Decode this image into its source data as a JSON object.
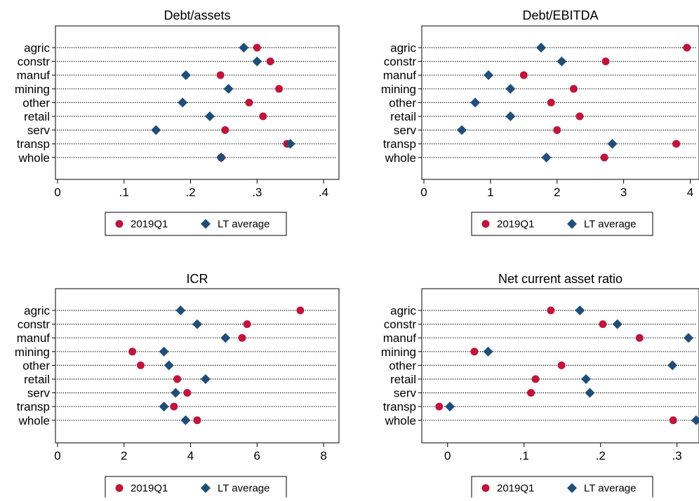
{
  "legend_labels": [
    "2019Q1",
    "LT average"
  ],
  "colors": {
    "2019Q1": "#c0143c",
    "LT average": "#1f4e79",
    "axis": "#000000"
  },
  "chart_data": [
    {
      "type": "dot",
      "title": "Debt/assets",
      "categories": [
        "agric",
        "constr",
        "manuf",
        "mining",
        "other",
        "retail",
        "serv",
        "transp",
        "whole"
      ],
      "series": [
        {
          "name": "2019Q1",
          "values": [
            0.3,
            0.32,
            0.245,
            0.333,
            0.288,
            0.309,
            0.252,
            0.345,
            0.246
          ]
        },
        {
          "name": "LT average",
          "values": [
            0.28,
            0.3,
            0.193,
            0.257,
            0.188,
            0.229,
            0.148,
            0.35,
            0.246
          ]
        }
      ],
      "xticks": [
        0,
        0.1,
        0.2,
        0.3,
        0.4
      ],
      "xtick_labels": [
        "0",
        ".1",
        ".2",
        ".3",
        ".4"
      ],
      "xlim": [
        0,
        0.42
      ],
      "legend_position": "bottom"
    },
    {
      "type": "dot",
      "title": "Debt/EBITDA",
      "categories": [
        "agric",
        "constr",
        "manuf",
        "mining",
        "other",
        "retail",
        "serv",
        "transp",
        "whole"
      ],
      "series": [
        {
          "name": "2019Q1",
          "values": [
            3.95,
            2.73,
            1.5,
            2.25,
            1.91,
            2.34,
            2.0,
            3.79,
            2.71
          ]
        },
        {
          "name": "LT average",
          "values": [
            1.76,
            2.07,
            0.97,
            1.3,
            0.77,
            1.3,
            0.57,
            2.83,
            1.84
          ]
        }
      ],
      "xticks": [
        0,
        1,
        2,
        3,
        4
      ],
      "xtick_labels": [
        "0",
        "1",
        "2",
        "3",
        "4"
      ],
      "xlim": [
        0,
        4.1
      ],
      "legend_position": "bottom"
    },
    {
      "type": "dot",
      "title": "ICR",
      "categories": [
        "agric",
        "constr",
        "manuf",
        "mining",
        "other",
        "retail",
        "serv",
        "transp",
        "whole"
      ],
      "series": [
        {
          "name": "2019Q1",
          "values": [
            7.3,
            5.7,
            5.55,
            2.25,
            2.5,
            3.6,
            3.9,
            3.5,
            4.2
          ]
        },
        {
          "name": "LT average",
          "values": [
            3.7,
            4.2,
            5.05,
            3.2,
            3.35,
            4.45,
            3.55,
            3.2,
            3.85
          ]
        }
      ],
      "xticks": [
        0,
        2,
        4,
        6,
        8
      ],
      "xtick_labels": [
        "0",
        "2",
        "4",
        "6",
        "8"
      ],
      "xlim": [
        0,
        8.4
      ],
      "legend_position": "bottom"
    },
    {
      "type": "dot",
      "title": "Net current asset ratio",
      "categories": [
        "agric",
        "constr",
        "manuf",
        "mining",
        "other",
        "retail",
        "serv",
        "transp",
        "whole"
      ],
      "series": [
        {
          "name": "2019Q1",
          "values": [
            0.135,
            0.203,
            0.251,
            0.035,
            0.149,
            0.115,
            0.109,
            -0.011,
            0.295
          ]
        },
        {
          "name": "LT average",
          "values": [
            0.173,
            0.222,
            0.315,
            0.053,
            0.294,
            0.181,
            0.186,
            0.003,
            0.325
          ]
        }
      ],
      "xticks": [
        0,
        0.1,
        0.2,
        0.3
      ],
      "xtick_labels": [
        "0",
        ".1",
        ".2",
        ".3"
      ],
      "xlim": [
        -0.031,
        0.326
      ],
      "legend_position": "bottom"
    }
  ]
}
